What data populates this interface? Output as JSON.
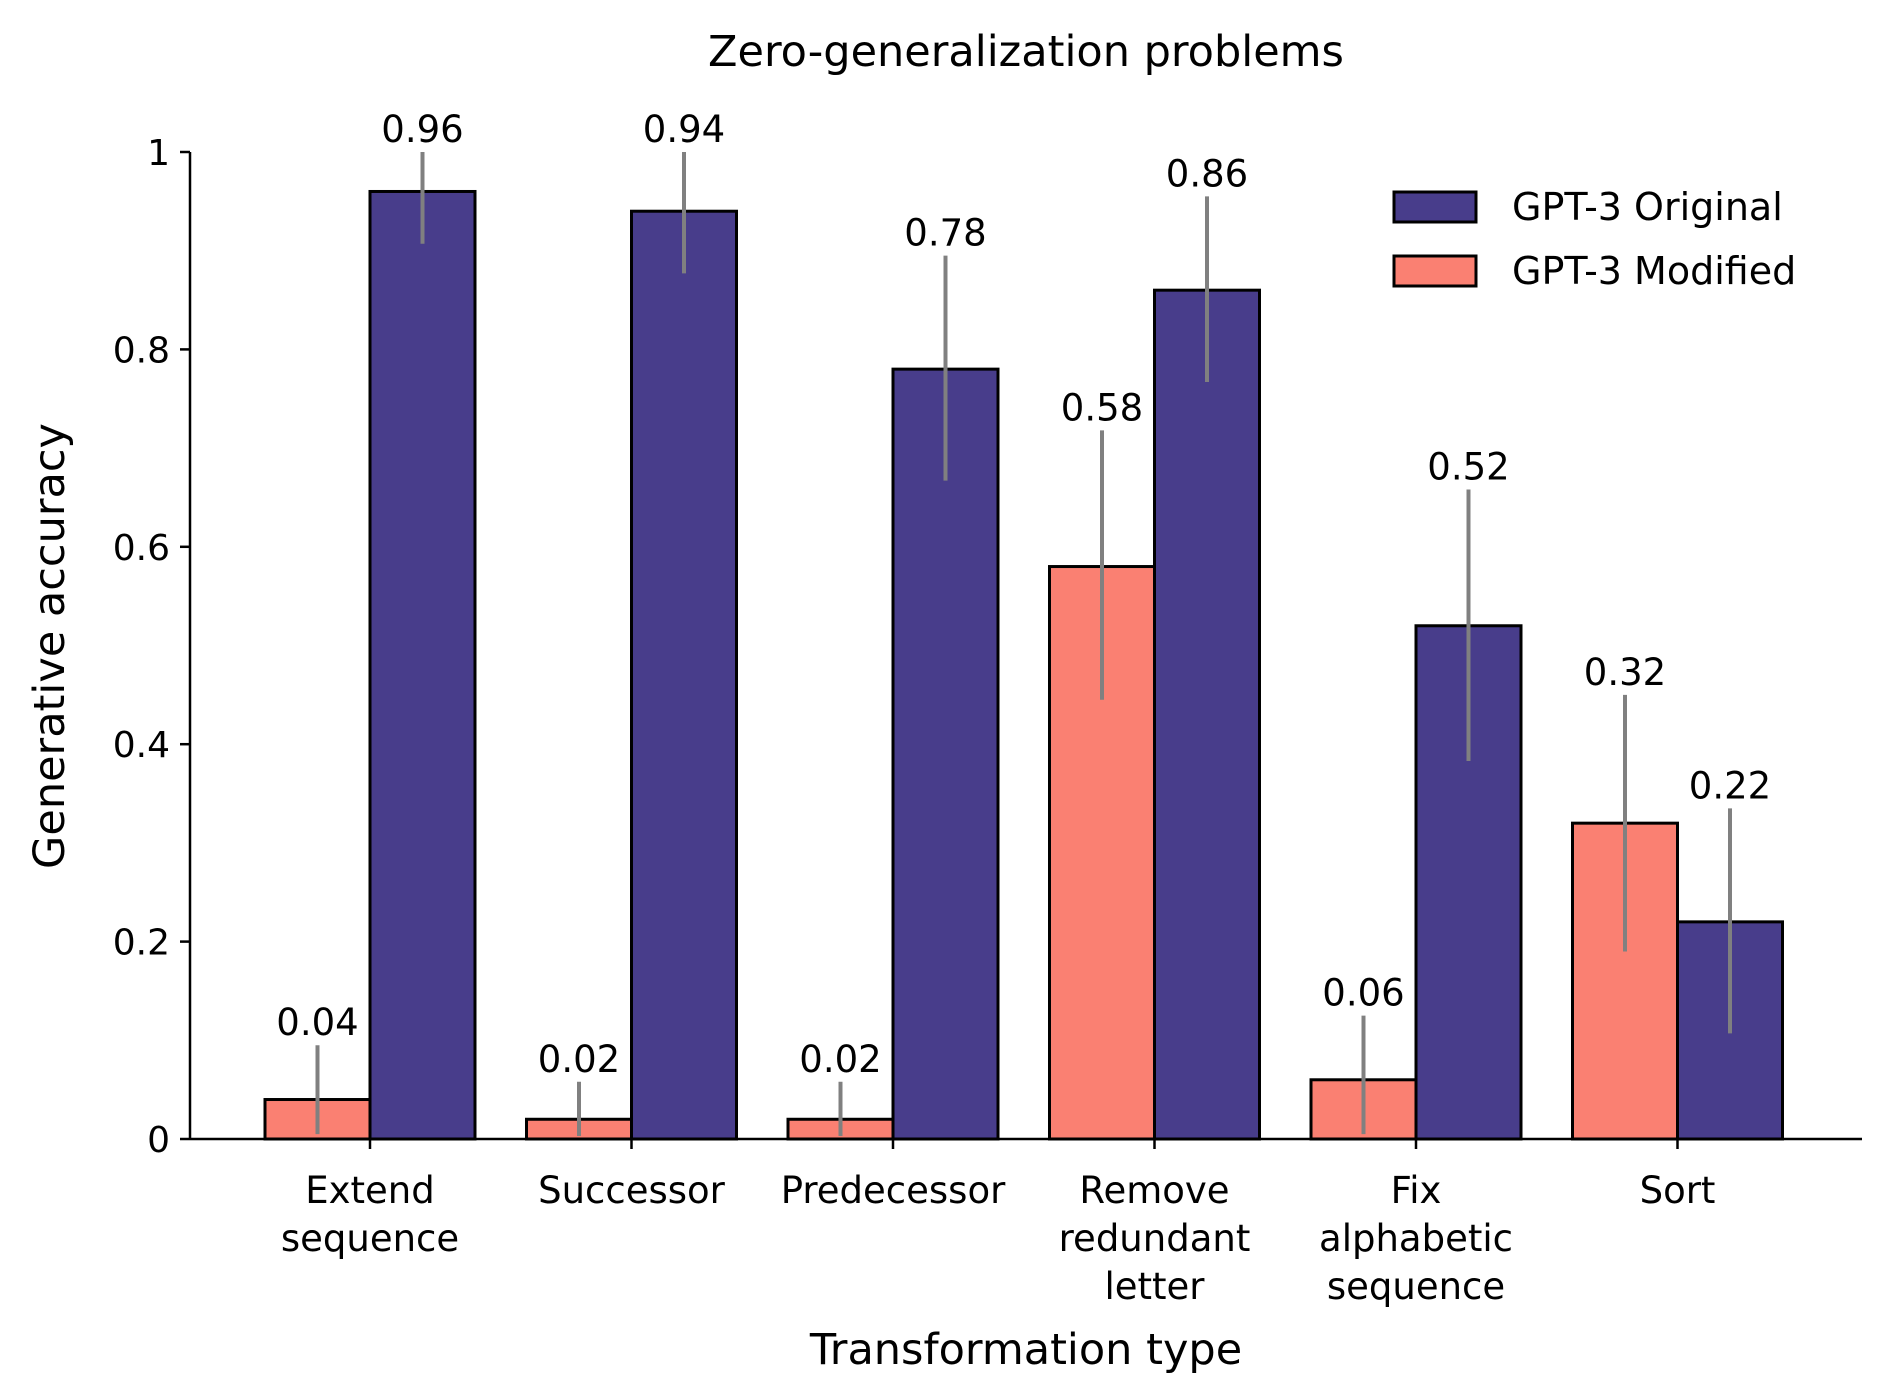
{
  "chart_data": {
    "type": "bar",
    "title": "Zero-generalization problems",
    "xlabel": "Transformation type",
    "ylabel": "Generative accuracy",
    "ylim": [
      0,
      1
    ],
    "yticks": [
      0,
      0.2,
      0.4,
      0.6,
      0.8,
      1
    ],
    "ytick_labels": [
      "0",
      "0.2",
      "0.4",
      "0.6",
      "0.8",
      "1"
    ],
    "categories": [
      [
        "Extend",
        "sequence"
      ],
      [
        "Successor"
      ],
      [
        "Predecessor"
      ],
      [
        "Remove",
        "redundant",
        "letter"
      ],
      [
        "Fix",
        "alphabetic",
        "sequence"
      ],
      [
        "Sort"
      ]
    ],
    "series": [
      {
        "name": "GPT-3 Modified",
        "color": "#fa8072",
        "values": [
          0.04,
          0.02,
          0.02,
          0.58,
          0.06,
          0.32
        ],
        "labels": [
          "0.04",
          "0.02",
          "0.02",
          "0.58",
          "0.06",
          "0.32"
        ],
        "err_low": [
          0.005,
          0.003,
          0.003,
          0.445,
          0.005,
          0.19
        ],
        "err_high": [
          0.095,
          0.058,
          0.058,
          0.718,
          0.125,
          0.45
        ]
      },
      {
        "name": "GPT-3 Original",
        "color": "#483d8b",
        "values": [
          0.96,
          0.94,
          0.78,
          0.86,
          0.52,
          0.22
        ],
        "labels": [
          "0.96",
          "0.94",
          "0.78",
          "0.86",
          "0.52",
          "0.22"
        ],
        "err_low": [
          0.907,
          0.877,
          0.667,
          0.767,
          0.383,
          0.107
        ],
        "err_high": [
          1.0,
          1.0,
          0.895,
          0.955,
          0.658,
          0.335
        ]
      }
    ],
    "legend": {
      "position": "top-right",
      "order": [
        "GPT-3 Original",
        "GPT-3 Modified"
      ]
    },
    "errorbar_color": "#808080",
    "grid": false
  }
}
